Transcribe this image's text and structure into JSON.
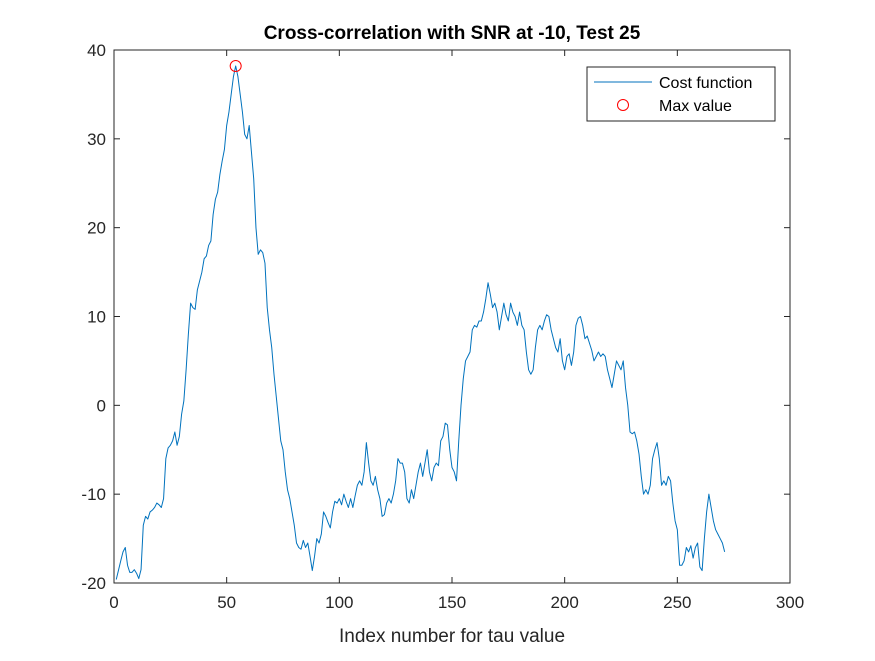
{
  "chart_data": {
    "type": "line",
    "title": "Cross-correlation with SNR at -10, Test 25",
    "xlabel": "Index number for tau value",
    "ylabel": "",
    "xlim": [
      0,
      300
    ],
    "ylim": [
      -20,
      40
    ],
    "xticks": [
      0,
      50,
      100,
      150,
      200,
      250,
      300
    ],
    "yticks": [
      -20,
      -10,
      0,
      10,
      20,
      30,
      40
    ],
    "grid": false,
    "box": true,
    "legend": {
      "placement": "top-right",
      "entries": [
        {
          "label": "Cost function",
          "marker": "line",
          "color": "#0072BD"
        },
        {
          "label": "Max value",
          "marker": "circle",
          "color": "#FF0000"
        }
      ]
    },
    "series": [
      {
        "name": "Cost function",
        "color": "#0072BD",
        "points": [
          [
            1,
            -19.6
          ],
          [
            3,
            -17.5
          ],
          [
            4,
            -16.5
          ],
          [
            5,
            -16.0
          ],
          [
            6,
            -18.0
          ],
          [
            7,
            -18.8
          ],
          [
            8,
            -18.8
          ],
          [
            9,
            -18.5
          ],
          [
            10,
            -18.9
          ],
          [
            11,
            -19.5
          ],
          [
            12,
            -18.5
          ],
          [
            13,
            -13.5
          ],
          [
            14,
            -12.5
          ],
          [
            15,
            -12.8
          ],
          [
            16,
            -12.0
          ],
          [
            17,
            -11.8
          ],
          [
            18,
            -11.5
          ],
          [
            19,
            -11.0
          ],
          [
            20,
            -11.2
          ],
          [
            21,
            -11.5
          ],
          [
            22,
            -10.5
          ],
          [
            23,
            -6.0
          ],
          [
            24,
            -4.8
          ],
          [
            25,
            -4.5
          ],
          [
            26,
            -4.0
          ],
          [
            27,
            -3.0
          ],
          [
            28,
            -4.5
          ],
          [
            29,
            -3.5
          ],
          [
            30,
            -1.0
          ],
          [
            31,
            0.5
          ],
          [
            32,
            4.0
          ],
          [
            33,
            8.0
          ],
          [
            34,
            11.5
          ],
          [
            35,
            11.0
          ],
          [
            36,
            10.8
          ],
          [
            37,
            13.0
          ],
          [
            38,
            14.0
          ],
          [
            39,
            15.0
          ],
          [
            40,
            16.5
          ],
          [
            41,
            16.8
          ],
          [
            42,
            18.0
          ],
          [
            43,
            18.5
          ],
          [
            44,
            21.5
          ],
          [
            45,
            23.2
          ],
          [
            46,
            24.0
          ],
          [
            47,
            26.0
          ],
          [
            48,
            27.5
          ],
          [
            49,
            28.8
          ],
          [
            50,
            31.5
          ],
          [
            51,
            33.0
          ],
          [
            52,
            35.0
          ],
          [
            53,
            37.0
          ],
          [
            54,
            38.2
          ],
          [
            55,
            37.0
          ],
          [
            56,
            35.0
          ],
          [
            57,
            33.0
          ],
          [
            58,
            30.5
          ],
          [
            59,
            30.0
          ],
          [
            60,
            31.5
          ],
          [
            61,
            28.5
          ],
          [
            62,
            25.5
          ],
          [
            63,
            20.0
          ],
          [
            64,
            17.0
          ],
          [
            65,
            17.5
          ],
          [
            66,
            17.2
          ],
          [
            67,
            16.0
          ],
          [
            68,
            11.0
          ],
          [
            69,
            8.5
          ],
          [
            70,
            6.5
          ],
          [
            71,
            3.5
          ],
          [
            72,
            1.0
          ],
          [
            73,
            -1.5
          ],
          [
            74,
            -4.0
          ],
          [
            75,
            -5.0
          ],
          [
            76,
            -7.5
          ],
          [
            77,
            -9.5
          ],
          [
            78,
            -10.5
          ],
          [
            79,
            -12.0
          ],
          [
            80,
            -13.5
          ],
          [
            81,
            -15.5
          ],
          [
            82,
            -16.0
          ],
          [
            83,
            -16.2
          ],
          [
            84,
            -15.2
          ],
          [
            85,
            -16.0
          ],
          [
            86,
            -15.5
          ],
          [
            87,
            -17.0
          ],
          [
            88,
            -18.6
          ],
          [
            89,
            -17.0
          ],
          [
            90,
            -15.0
          ],
          [
            91,
            -15.5
          ],
          [
            92,
            -14.5
          ],
          [
            93,
            -12.0
          ],
          [
            94,
            -12.5
          ],
          [
            95,
            -13.2
          ],
          [
            96,
            -13.8
          ],
          [
            97,
            -12.0
          ],
          [
            98,
            -10.8
          ],
          [
            99,
            -11.0
          ],
          [
            100,
            -10.5
          ],
          [
            101,
            -11.2
          ],
          [
            102,
            -10.0
          ],
          [
            103,
            -10.8
          ],
          [
            104,
            -11.5
          ],
          [
            105,
            -10.5
          ],
          [
            106,
            -11.5
          ],
          [
            107,
            -10.2
          ],
          [
            108,
            -9.0
          ],
          [
            109,
            -8.5
          ],
          [
            110,
            -9.0
          ],
          [
            111,
            -7.5
          ],
          [
            112,
            -4.2
          ],
          [
            113,
            -6.5
          ],
          [
            114,
            -8.5
          ],
          [
            115,
            -9.0
          ],
          [
            116,
            -8.0
          ],
          [
            117,
            -9.5
          ],
          [
            118,
            -10.5
          ],
          [
            119,
            -12.5
          ],
          [
            120,
            -12.3
          ],
          [
            121,
            -11.0
          ],
          [
            122,
            -10.5
          ],
          [
            123,
            -11.0
          ],
          [
            124,
            -10.0
          ],
          [
            125,
            -8.5
          ],
          [
            126,
            -6.0
          ],
          [
            127,
            -6.5
          ],
          [
            128,
            -6.5
          ],
          [
            129,
            -7.5
          ],
          [
            130,
            -10.5
          ],
          [
            131,
            -11.0
          ],
          [
            132,
            -9.5
          ],
          [
            133,
            -10.5
          ],
          [
            134,
            -9.0
          ],
          [
            135,
            -7.5
          ],
          [
            136,
            -6.5
          ],
          [
            137,
            -8.0
          ],
          [
            138,
            -6.5
          ],
          [
            139,
            -5.0
          ],
          [
            140,
            -7.5
          ],
          [
            141,
            -8.5
          ],
          [
            142,
            -7.0
          ],
          [
            143,
            -6.5
          ],
          [
            144,
            -6.8
          ],
          [
            145,
            -4.0
          ],
          [
            146,
            -3.5
          ],
          [
            147,
            -2.0
          ],
          [
            148,
            -2.2
          ],
          [
            149,
            -5.0
          ],
          [
            150,
            -7.0
          ],
          [
            151,
            -7.5
          ],
          [
            152,
            -8.5
          ],
          [
            153,
            -4.0
          ],
          [
            154,
            0.0
          ],
          [
            155,
            3.0
          ],
          [
            156,
            5.0
          ],
          [
            157,
            5.5
          ],
          [
            158,
            6.0
          ],
          [
            159,
            8.5
          ],
          [
            160,
            9.0
          ],
          [
            161,
            8.8
          ],
          [
            162,
            9.5
          ],
          [
            163,
            9.5
          ],
          [
            164,
            10.5
          ],
          [
            165,
            12.0
          ],
          [
            166,
            13.8
          ],
          [
            167,
            12.5
          ],
          [
            168,
            11.0
          ],
          [
            169,
            11.5
          ],
          [
            170,
            10.5
          ],
          [
            171,
            8.5
          ],
          [
            172,
            10.0
          ],
          [
            173,
            11.5
          ],
          [
            174,
            10.2
          ],
          [
            175,
            9.5
          ],
          [
            176,
            11.5
          ],
          [
            177,
            10.5
          ],
          [
            178,
            10.0
          ],
          [
            179,
            9.0
          ],
          [
            180,
            10.5
          ],
          [
            181,
            9.0
          ],
          [
            182,
            8.5
          ],
          [
            183,
            6.0
          ],
          [
            184,
            4.0
          ],
          [
            185,
            3.5
          ],
          [
            186,
            4.0
          ],
          [
            187,
            6.5
          ],
          [
            188,
            8.5
          ],
          [
            189,
            9.0
          ],
          [
            190,
            8.5
          ],
          [
            191,
            9.5
          ],
          [
            192,
            10.2
          ],
          [
            193,
            10.0
          ],
          [
            194,
            8.5
          ],
          [
            195,
            7.5
          ],
          [
            196,
            6.5
          ],
          [
            197,
            6.0
          ],
          [
            198,
            7.5
          ],
          [
            199,
            5.0
          ],
          [
            200,
            4.0
          ],
          [
            201,
            5.5
          ],
          [
            202,
            5.8
          ],
          [
            203,
            4.5
          ],
          [
            204,
            6.0
          ],
          [
            205,
            9.0
          ],
          [
            206,
            9.8
          ],
          [
            207,
            10.0
          ],
          [
            208,
            9.0
          ],
          [
            209,
            7.5
          ],
          [
            210,
            7.8
          ],
          [
            211,
            7.0
          ],
          [
            212,
            6.2
          ],
          [
            213,
            5.0
          ],
          [
            214,
            5.5
          ],
          [
            215,
            6.0
          ],
          [
            216,
            5.5
          ],
          [
            217,
            5.8
          ],
          [
            218,
            5.5
          ],
          [
            219,
            4.0
          ],
          [
            220,
            3.0
          ],
          [
            221,
            2.0
          ],
          [
            222,
            3.5
          ],
          [
            223,
            5.0
          ],
          [
            224,
            4.5
          ],
          [
            225,
            4.0
          ],
          [
            226,
            5.0
          ],
          [
            227,
            2.0
          ],
          [
            228,
            0.0
          ],
          [
            229,
            -3.0
          ],
          [
            230,
            -3.2
          ],
          [
            231,
            -3.0
          ],
          [
            232,
            -4.0
          ],
          [
            233,
            -5.5
          ],
          [
            234,
            -8.0
          ],
          [
            235,
            -10.0
          ],
          [
            236,
            -9.5
          ],
          [
            237,
            -10.0
          ],
          [
            238,
            -9.0
          ],
          [
            239,
            -6.0
          ],
          [
            240,
            -5.0
          ],
          [
            241,
            -4.2
          ],
          [
            242,
            -6.0
          ],
          [
            243,
            -9.0
          ],
          [
            244,
            -8.5
          ],
          [
            245,
            -9.0
          ],
          [
            246,
            -8.0
          ],
          [
            247,
            -8.5
          ],
          [
            248,
            -11.0
          ],
          [
            249,
            -13.0
          ],
          [
            250,
            -14.0
          ],
          [
            251,
            -18.0
          ],
          [
            252,
            -18.0
          ],
          [
            253,
            -17.5
          ],
          [
            254,
            -16.0
          ],
          [
            255,
            -16.5
          ],
          [
            256,
            -15.8
          ],
          [
            257,
            -17.2
          ],
          [
            258,
            -16.0
          ],
          [
            259,
            -15.5
          ],
          [
            260,
            -18.2
          ],
          [
            261,
            -18.6
          ],
          [
            262,
            -15.0
          ],
          [
            263,
            -12.0
          ],
          [
            264,
            -10.0
          ],
          [
            265,
            -11.5
          ],
          [
            266,
            -13.0
          ],
          [
            267,
            -14.0
          ],
          [
            268,
            -14.5
          ],
          [
            269,
            -15.0
          ],
          [
            270,
            -15.5
          ],
          [
            271,
            -16.5
          ]
        ]
      }
    ],
    "max_marker": {
      "name": "Max value",
      "x": 54,
      "y": 38.2,
      "color": "#FF0000"
    }
  }
}
